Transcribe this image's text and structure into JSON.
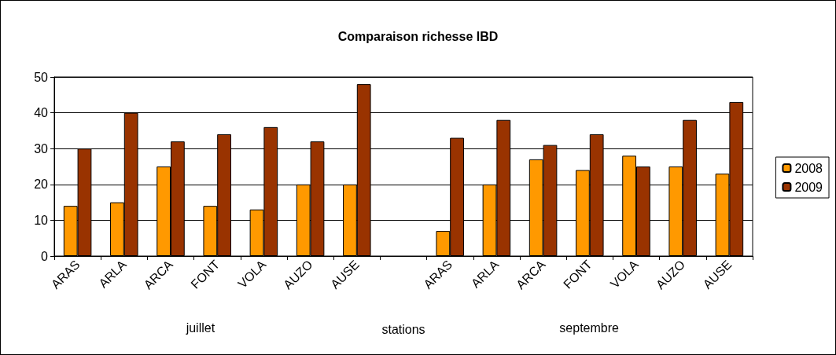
{
  "chart_data": {
    "type": "bar",
    "title": "Comparaison richesse IBD",
    "xlabel": "stations",
    "annotations": [
      "juillet",
      "septembre"
    ],
    "categories": [
      "ARAS",
      "ARLA",
      "ARCA",
      "FONT",
      "VOLA",
      "AUZO",
      "AUSE",
      null,
      "ARAS",
      "ARLA",
      "ARCA",
      "FONT",
      "VOLA",
      "AUZO",
      "AUSE"
    ],
    "series": [
      {
        "name": "2008",
        "color": "#ff9900",
        "values": [
          14,
          15,
          25,
          14,
          13,
          20,
          20,
          null,
          7,
          20,
          27,
          24,
          28,
          25,
          23
        ]
      },
      {
        "name": "2009",
        "color": "#993300",
        "values": [
          30,
          40,
          32,
          34,
          36,
          32,
          48,
          null,
          33,
          38,
          31,
          34,
          25,
          38,
          43
        ]
      }
    ],
    "ylim": [
      0,
      50
    ],
    "yticks": [
      0,
      10,
      20,
      30,
      40,
      50
    ],
    "grid": "y",
    "legend": "right"
  }
}
